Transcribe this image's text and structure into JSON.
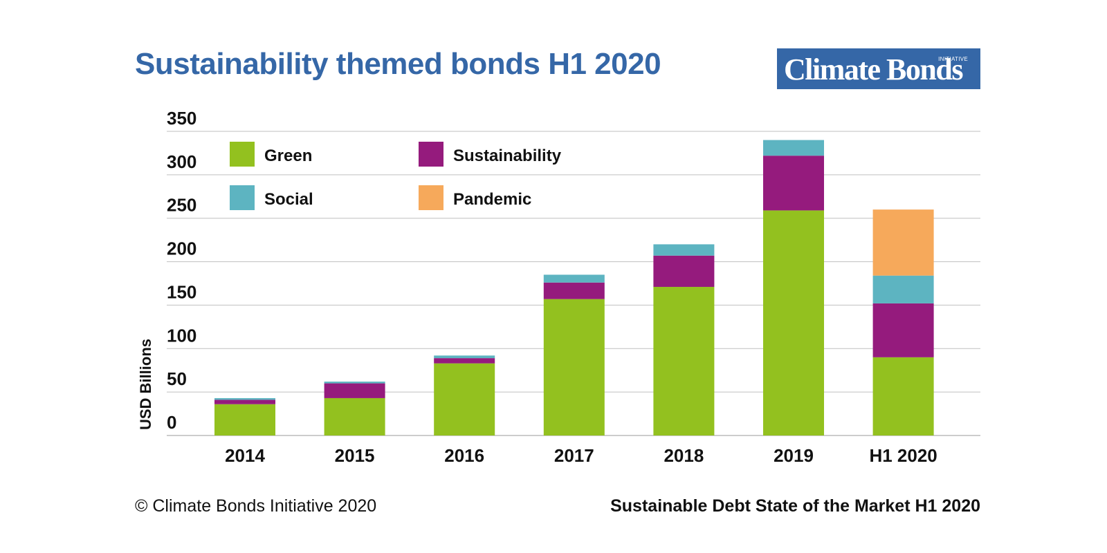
{
  "header": {
    "title": "Sustainability themed bonds H1 2020"
  },
  "logo": {
    "name": "Climate Bonds",
    "tag": "INITIATIVE"
  },
  "footer": {
    "copyright": "© Climate Bonds Initiative 2020",
    "source": "Sustainable Debt State of the Market H1 2020"
  },
  "colors": {
    "brand_blue": "#3567a7",
    "green": "#93c11f",
    "sustainability": "#951b7d",
    "social": "#5db4c1",
    "pandemic": "#f6a95b",
    "grid": "#bfbfbf"
  },
  "chart_data": {
    "type": "bar",
    "stacked": true,
    "title": "Sustainability themed bonds H1 2020",
    "xlabel": "",
    "ylabel": "USD Billions",
    "ylim": [
      0,
      350
    ],
    "yticks": [
      0,
      50,
      100,
      150,
      200,
      250,
      300,
      350
    ],
    "grid": true,
    "legend_position": "top-left",
    "categories": [
      "2014",
      "2015",
      "2016",
      "2017",
      "2018",
      "2019",
      "H1 2020"
    ],
    "series": [
      {
        "name": "Green",
        "color": "#93c11f",
        "values": [
          36,
          43,
          83,
          157,
          171,
          259,
          90
        ]
      },
      {
        "name": "Sustainability",
        "color": "#951b7d",
        "values": [
          5,
          17,
          6,
          19,
          36,
          63,
          62
        ]
      },
      {
        "name": "Social",
        "color": "#5db4c1",
        "values": [
          2,
          2,
          3,
          9,
          13,
          18,
          32
        ]
      },
      {
        "name": "Pandemic",
        "color": "#f6a95b",
        "values": [
          0,
          0,
          0,
          0,
          0,
          0,
          76
        ]
      }
    ]
  }
}
